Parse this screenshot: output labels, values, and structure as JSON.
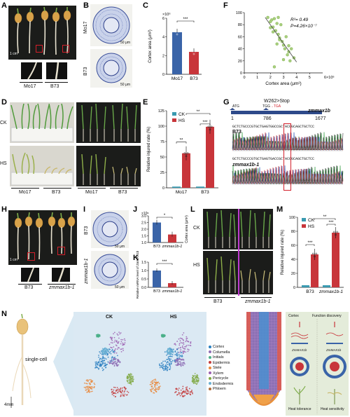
{
  "panels": {
    "A": {
      "letter": "A",
      "labels": [
        "Mo17",
        "B73"
      ],
      "scale": "1 cm"
    },
    "B": {
      "letter": "B",
      "labels": [
        "Mo17",
        "B73"
      ],
      "scale": "50 μm"
    },
    "C": {
      "letter": "C",
      "sig": "***",
      "ylabel": "Cortex area (μm²)",
      "exp": "×10⁶"
    },
    "D": {
      "letter": "D",
      "rows": [
        "CK",
        "HS"
      ],
      "labels": [
        "Mo17",
        "B73"
      ],
      "scale": "10 cm"
    },
    "E": {
      "letter": "E",
      "sig": [
        "**",
        "**",
        "***"
      ],
      "ylabel": "Relative injured rate (%)"
    },
    "F": {
      "letter": "F",
      "r2": "R²= 0.49",
      "p": "P=4.26×10⁻⁷",
      "ylabel": "Relative injured rate (%)",
      "xlabel": "Cortex area (μm²)"
    },
    "G": {
      "letter": "G",
      "mutation": "W262>Stop",
      "atg": "ATG",
      "codon_wt": "TGG",
      "codon_arrow": "→",
      "codon_mut": "TGA",
      "gene": "zmmax1b",
      "pos": [
        "1",
        "786",
        "1677"
      ],
      "seq1": "GCTCTGCCCGTGCTGAGTGGCCGCTACGGCAGCTGCTCC",
      "seq2": "GCTCTGCCCGTGCTGAGTGACCGCTACGGCAGCTGCTCC",
      "row1": "B73",
      "row2": "zmmax1b-1"
    },
    "H": {
      "letter": "H",
      "labels": [
        "B73",
        "zmmax1b-1"
      ],
      "scale": "1 cm"
    },
    "I": {
      "letter": "I",
      "labels": [
        "B73",
        "zmmax1b-1"
      ],
      "scale": "50 μm"
    },
    "J": {
      "letter": "J",
      "sig": "*",
      "ylabel": "Cortex area (μm²)",
      "exp": "×10⁶",
      "xlabels": [
        "B73",
        "zmmax1b-1"
      ]
    },
    "K": {
      "letter": "K",
      "sig": "***",
      "ylabel": "Relative mRNA level of ZmMAX1b",
      "xlabels": [
        "B73",
        "zmmax1b-1"
      ]
    },
    "L": {
      "letter": "L",
      "rows": [
        "CK",
        "HS"
      ],
      "labels": [
        "B73",
        "zmmax1b-1"
      ],
      "scale": "10 cm"
    },
    "M": {
      "letter": "M",
      "sig": [
        "***",
        "**",
        "***"
      ],
      "ylabel": "Relative injured rate (%)"
    },
    "N": {
      "letter": "N",
      "single_cell": "single-cell",
      "scale": "4mm",
      "ck": "CK",
      "hs": "HS",
      "cell_types": [
        "Cortex",
        "Columella",
        "Initials",
        "Epidermis",
        "Stele",
        "Xylem",
        "Pericycle",
        "Endodermis",
        "Phloem"
      ],
      "cortex_label": "Cortex",
      "function_discovery": "Function discovery",
      "gene_left": "ZmMAX1b",
      "gene_right": "ZmMAX1b",
      "heat_tol": "Heat tolerance",
      "heat_sen": "Heat sensitivity"
    }
  },
  "colors": {
    "mo17": "#3a64a8",
    "b73": "#c8353a",
    "ck": "#3a9ab0",
    "hs": "#c8353a",
    "red": "#d21f2a",
    "cell_colors": [
      "#2a7fc1",
      "#8e6fb5",
      "#4bb08a",
      "#c33b3b",
      "#e9883c",
      "#9b5fb0",
      "#7fa842",
      "#6ab0d3",
      "#b06d3a"
    ]
  },
  "chart_data": [
    {
      "id": "C",
      "type": "bar",
      "categories": [
        "Mo17",
        "B73"
      ],
      "values": [
        4.5,
        2.4
      ],
      "ylim": [
        0,
        6
      ],
      "yticks": [
        0,
        2,
        4,
        6
      ],
      "ylabel": "Cortex area (μm²)"
    },
    {
      "id": "E",
      "type": "bar",
      "categories": [
        "Mo17",
        "B73"
      ],
      "series": [
        {
          "name": "CK",
          "values": [
            2,
            2
          ]
        },
        {
          "name": "HS",
          "values": [
            56,
            99
          ]
        }
      ],
      "ylim": [
        0,
        125
      ],
      "yticks": [
        0,
        25,
        50,
        75,
        100,
        125
      ],
      "ylabel": "Relative injured rate (%)"
    },
    {
      "id": "F",
      "type": "scatter",
      "xlim": [
        0,
        6
      ],
      "ylim": [
        0,
        100
      ],
      "xticks": [
        0,
        1,
        2,
        3,
        4,
        5
      ],
      "yticks": [
        0,
        20,
        40,
        60,
        80,
        100
      ],
      "x": [
        1.8,
        2.0,
        2.1,
        2.2,
        2.3,
        2.4,
        2.5,
        2.6,
        2.6,
        2.7,
        2.8,
        2.9,
        3.0,
        3.1,
        3.2,
        3.3,
        3.4,
        3.5,
        3.6,
        3.8,
        2.0,
        2.2,
        2.5,
        3.0,
        3.4,
        2.7,
        2.3
      ],
      "y": [
        92,
        85,
        88,
        76,
        90,
        70,
        82,
        64,
        92,
        55,
        80,
        52,
        46,
        40,
        60,
        30,
        35,
        20,
        40,
        25,
        75,
        68,
        48,
        22,
        45,
        58,
        10
      ]
    },
    {
      "id": "J",
      "type": "bar",
      "categories": [
        "B73",
        "zmmax1b-1"
      ],
      "values": [
        2.5,
        1.6
      ],
      "ylim": [
        0,
        3
      ],
      "yticks": [
        1.0,
        1.5,
        2.0,
        2.5,
        3.0
      ],
      "ylabel": "Cortex area (μm²)"
    },
    {
      "id": "K",
      "type": "bar",
      "categories": [
        "B73",
        "zmmax1b-1"
      ],
      "values": [
        1.0,
        0.25
      ],
      "ylim": [
        0,
        1.5
      ],
      "yticks": [
        0.0,
        0.5,
        1.0,
        1.5
      ],
      "ylabel": "Relative mRNA level of ZmMAX1b"
    },
    {
      "id": "M",
      "type": "bar",
      "categories": [
        "B73",
        "zmmax1b-1"
      ],
      "series": [
        {
          "name": "CK",
          "values": [
            3,
            3
          ]
        },
        {
          "name": "HS",
          "values": [
            47,
            78
          ]
        }
      ],
      "ylim": [
        0,
        100
      ],
      "yticks": [
        0,
        20,
        40,
        60,
        80,
        100
      ],
      "ylabel": "Relative injured rate (%)"
    }
  ]
}
